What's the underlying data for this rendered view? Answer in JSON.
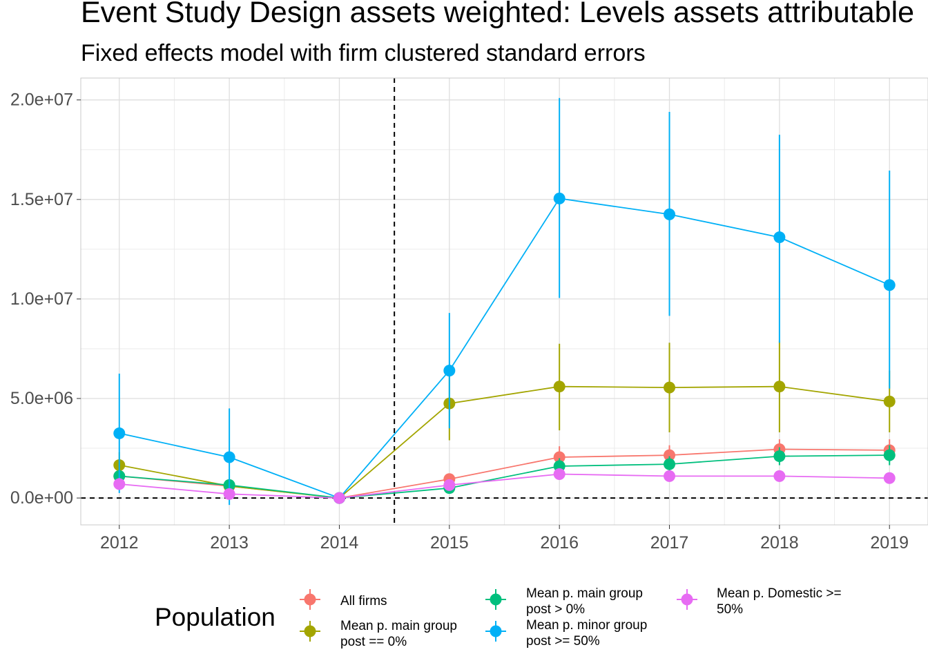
{
  "chart_data": {
    "type": "line",
    "title": "Event Study Design assets weighted: Levels assets attributable",
    "subtitle": "Fixed effects model with firm clustered standard errors",
    "xlabel": "",
    "ylabel": "",
    "x": [
      2012,
      2013,
      2014,
      2015,
      2016,
      2017,
      2018,
      2019
    ],
    "x_ticks": [
      "2012",
      "2013",
      "2014",
      "2015",
      "2016",
      "2017",
      "2018",
      "2019"
    ],
    "xlim": [
      2011.65,
      2019.35
    ],
    "y_ticks": [
      "0.0e+00",
      "5.0e+06",
      "1.0e+07",
      "1.5e+07",
      "2.0e+07"
    ],
    "y_tick_values": [
      0,
      5000000,
      10000000,
      15000000,
      20000000
    ],
    "ylim": [
      -1350000,
      21100000
    ],
    "grid": true,
    "vline_x": 2014.5,
    "hline_y": 0,
    "legend_title": "Population",
    "legend_position": "bottom",
    "series": [
      {
        "name": "All firms",
        "color": "#F8766D",
        "values": [
          1100000,
          600000,
          0,
          950000,
          2050000,
          2150000,
          2450000,
          2400000
        ],
        "lower": [
          900000,
          350000,
          0,
          700000,
          1500000,
          1650000,
          1950000,
          1850000
        ],
        "upper": [
          1300000,
          850000,
          0,
          1200000,
          2600000,
          2650000,
          2950000,
          2950000
        ]
      },
      {
        "name": "Mean p. main group post == 0%",
        "color": "#A3A500",
        "values": [
          1650000,
          600000,
          0,
          4750000,
          5600000,
          5550000,
          5600000,
          4850000
        ],
        "lower": [
          1000000,
          250000,
          0,
          2900000,
          3400000,
          3300000,
          3300000,
          3300000
        ],
        "upper": [
          2300000,
          950000,
          0,
          6600000,
          7750000,
          7800000,
          7900000,
          6400000
        ]
      },
      {
        "name": "Mean p. main group post > 0%",
        "color": "#00BF7D",
        "values": [
          1100000,
          650000,
          0,
          500000,
          1600000,
          1700000,
          2100000,
          2150000
        ],
        "lower": [
          850000,
          350000,
          0,
          300000,
          1200000,
          1300000,
          1650000,
          1650000
        ],
        "upper": [
          1350000,
          950000,
          0,
          700000,
          2000000,
          2100000,
          2550000,
          2650000
        ]
      },
      {
        "name": "Mean p. minor group post >= 50%",
        "color": "#00B0F6",
        "values": [
          3250000,
          2050000,
          0,
          6400000,
          15050000,
          14250000,
          13100000,
          10700000
        ],
        "lower": [
          250000,
          -350000,
          0,
          3500000,
          10050000,
          9150000,
          7800000,
          5500000
        ],
        "upper": [
          6250000,
          4500000,
          0,
          9300000,
          20100000,
          19400000,
          18250000,
          16450000
        ]
      },
      {
        "name": "Mean p. Domestic >= 50%",
        "color": "#E76BF3",
        "values": [
          700000,
          200000,
          0,
          650000,
          1200000,
          1100000,
          1100000,
          1000000
        ],
        "lower": [
          400000,
          50000,
          0,
          450000,
          950000,
          850000,
          850000,
          750000
        ],
        "upper": [
          1000000,
          350000,
          0,
          850000,
          1450000,
          1350000,
          1350000,
          1250000
        ]
      }
    ],
    "legend_items": [
      {
        "lines": [
          "All firms"
        ],
        "color": "#F8766D"
      },
      {
        "lines": [
          "Mean p. main group",
          "post == 0%"
        ],
        "color": "#A3A500"
      },
      {
        "lines": [
          "Mean p. main group",
          "post > 0%"
        ],
        "color": "#00BF7D"
      },
      {
        "lines": [
          "Mean p. minor group",
          "post >= 50%"
        ],
        "color": "#00B0F6"
      },
      {
        "lines": [
          "Mean p. Domestic >=",
          "50%"
        ],
        "color": "#E76BF3"
      }
    ]
  }
}
